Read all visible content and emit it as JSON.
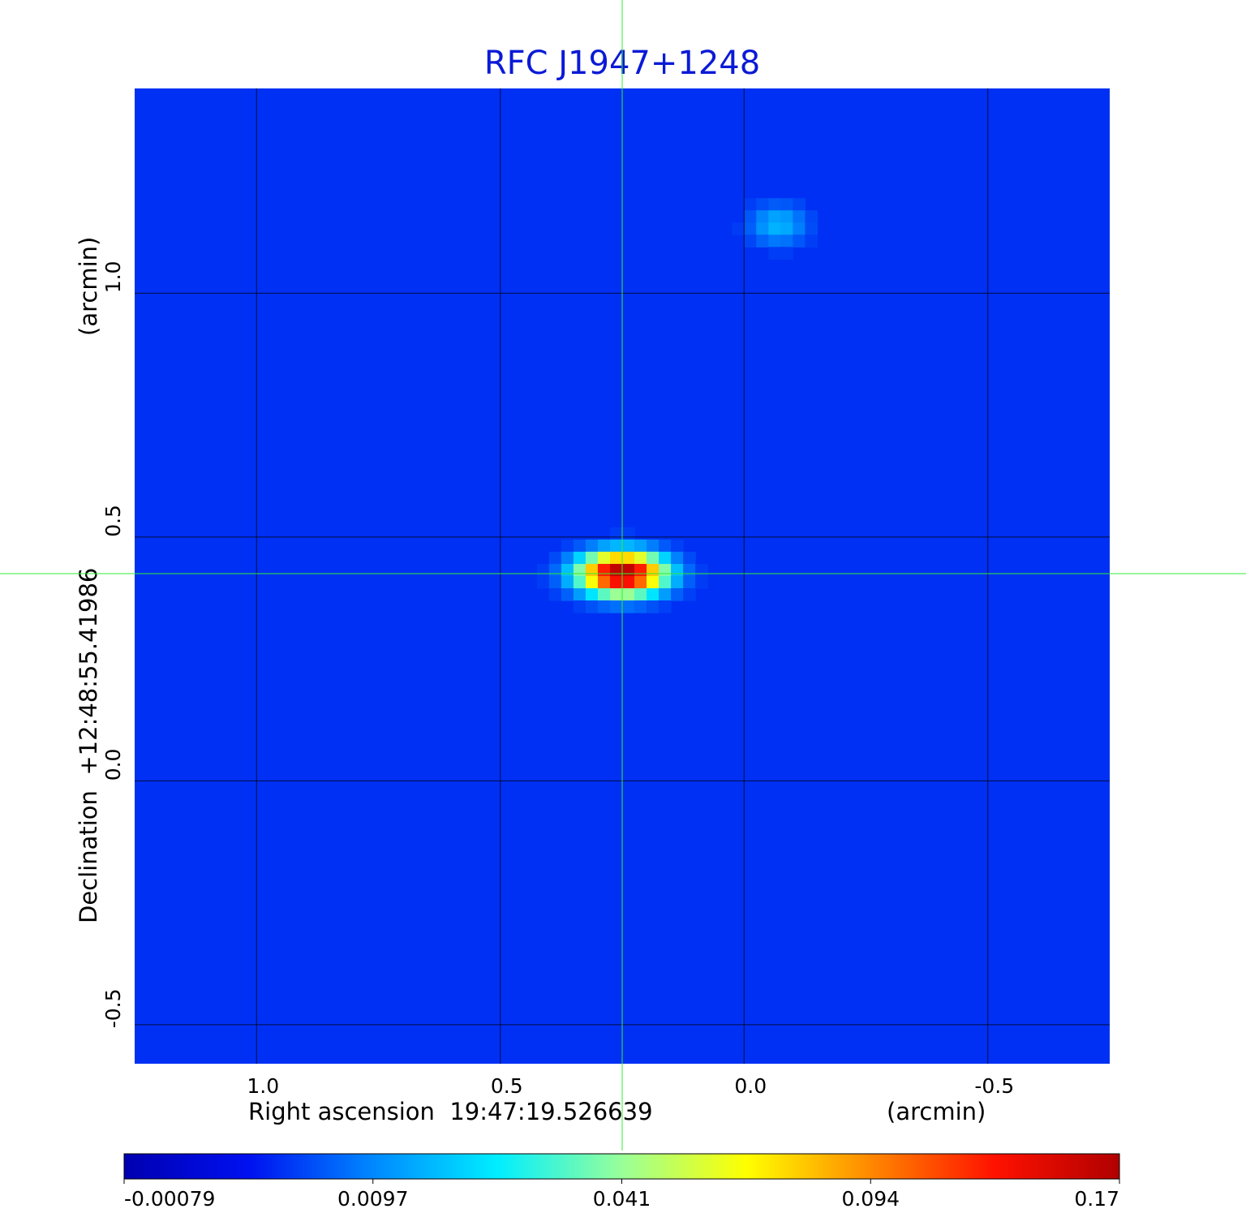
{
  "chart_data": {
    "type": "heatmap",
    "title": "RFC J1947+1248",
    "title_color": "#0a1ad6",
    "xlabel": "Right ascension  19:47:19.526639",
    "xunit": "(arcmin)",
    "ylabel": "Declination  +12:48:55.41986",
    "yunit": "(arcmin)",
    "xlim": [
      1.25,
      -0.75
    ],
    "ylim": [
      -0.58,
      1.42
    ],
    "x_ticks": [
      1.0,
      0.5,
      0.0,
      -0.5
    ],
    "x_tick_labels": [
      "1.0",
      "0.5",
      "0.0",
      "-0.5"
    ],
    "y_ticks": [
      1.0,
      0.5,
      0.0,
      -0.5
    ],
    "y_tick_labels": [
      "1.0",
      "0.5",
      "0.0",
      "-0.5"
    ],
    "grid": true,
    "crosshair": {
      "x": 0.25,
      "y": 0.425,
      "color": "#33ee33"
    },
    "background_value": 0.0035,
    "sources": [
      {
        "x": 0.25,
        "y": 0.425,
        "peak": 0.17,
        "sigma_x": 0.05,
        "sigma_y": 0.025
      },
      {
        "x": -0.07,
        "y": 1.14,
        "peak": 0.012,
        "sigma_x": 0.035,
        "sigma_y": 0.025
      }
    ],
    "colorbar": {
      "min": -0.00079,
      "max": 0.17,
      "tick_labels": [
        "-0.00079",
        "0.0097",
        "0.041",
        "0.094",
        "0.17"
      ],
      "colors": [
        "#0000b0",
        "#0010f0",
        "#0088ff",
        "#00eeff",
        "#99ff99",
        "#ffff00",
        "#ff8800",
        "#ff1100",
        "#b00000"
      ]
    }
  }
}
